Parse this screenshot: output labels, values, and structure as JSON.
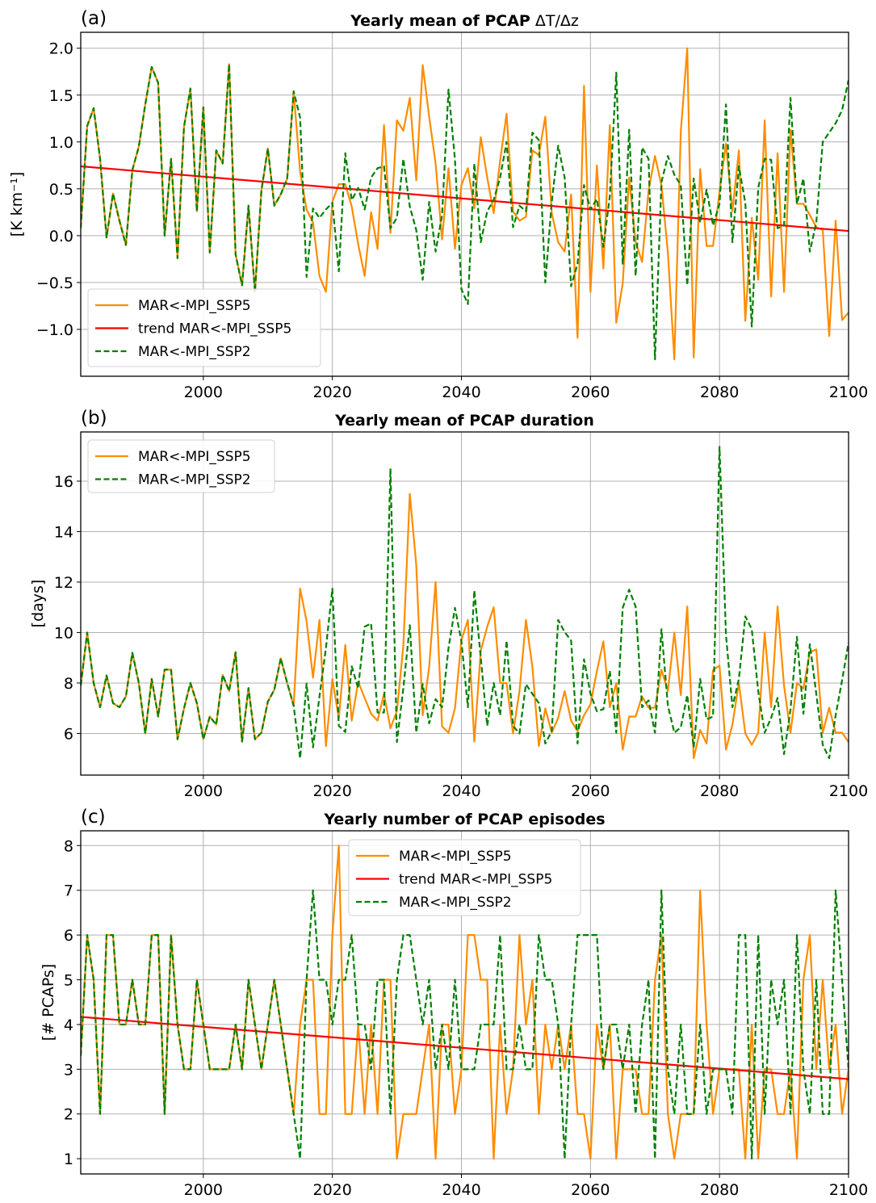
{
  "chart_data": [
    {
      "type": "line",
      "panel_label": "(a)",
      "title_bold": "Yearly mean of PCAP",
      "title_suffix": "ΔT/Δz",
      "xlabel": "",
      "ylabel": "[K km⁻¹]",
      "xlim": [
        1981,
        2100
      ],
      "ylim": [
        -1.5,
        2.17
      ],
      "xticks": [
        2000,
        2020,
        2040,
        2060,
        2080,
        2100
      ],
      "yticks": [
        -1.0,
        -0.5,
        0.0,
        0.5,
        1.0,
        1.5,
        2.0
      ],
      "ytick_labels": [
        "−1.0",
        "−0.5",
        "0.0",
        "0.5",
        "1.0",
        "1.5",
        "2.0"
      ],
      "grid": true,
      "legend_position": "lower-left",
      "x_start": 1981,
      "series": [
        {
          "name": "MAR<-MPI_SSP5",
          "color": "#ff8c00",
          "style": "solid",
          "values": [
            0.08,
            1.17,
            1.36,
            0.82,
            -0.02,
            0.45,
            0.16,
            -0.1,
            0.7,
            0.95,
            1.4,
            1.8,
            1.63,
            0.0,
            0.82,
            -0.24,
            1.16,
            1.57,
            0.26,
            1.37,
            -0.18,
            0.91,
            0.77,
            1.83,
            -0.2,
            -0.53,
            0.32,
            -0.6,
            0.48,
            0.93,
            0.32,
            0.44,
            0.61,
            1.54,
            0.68,
            0.28,
            0.14,
            -0.43,
            -0.6,
            0.36,
            0.55,
            0.55,
            0.31,
            -0.09,
            -0.43,
            0.25,
            -0.14,
            1.18,
            0.03,
            1.23,
            1.12,
            1.47,
            0.59,
            1.82,
            1.27,
            0.77,
            -0.04,
            0.72,
            -0.14,
            0.54,
            0.72,
            0.29,
            1.05,
            0.62,
            0.24,
            0.8,
            1.3,
            0.26,
            0.16,
            0.2,
            0.91,
            0.86,
            1.27,
            0.24,
            -0.07,
            -0.17,
            0.44,
            -1.09,
            1.6,
            -0.6,
            0.75,
            -0.35,
            1.18,
            -0.93,
            -0.51,
            0.62,
            -0.07,
            -0.28,
            0.48,
            0.85,
            0.54,
            -0.18,
            -1.32,
            1.11,
            2.0,
            -1.3,
            0.71,
            -0.11,
            -0.11,
            0.47,
            0.98,
            0.26,
            0.91,
            -0.91,
            0.19,
            -0.47,
            1.23,
            -0.65,
            0.88,
            -0.6,
            1.13,
            0.34,
            0.34,
            0.22,
            0.09,
            0.06,
            -1.07,
            0.16,
            -0.9,
            -0.82
          ]
        },
        {
          "name": "trend MAR<-MPI_SSP5",
          "color": "#ff0000",
          "style": "solid",
          "trend": {
            "start": [
              1981,
              0.74
            ],
            "end": [
              2100,
              0.05
            ]
          }
        },
        {
          "name": "MAR<-MPI_SSP2",
          "color": "#008000",
          "style": "dashed",
          "values": [
            0.08,
            1.17,
            1.36,
            0.82,
            -0.02,
            0.45,
            0.16,
            -0.1,
            0.7,
            0.95,
            1.4,
            1.8,
            1.63,
            0.0,
            0.82,
            -0.24,
            1.16,
            1.57,
            0.26,
            1.37,
            -0.18,
            0.91,
            0.77,
            1.83,
            -0.2,
            -0.53,
            0.32,
            -0.6,
            0.48,
            0.93,
            0.32,
            0.44,
            0.61,
            1.54,
            1.26,
            -0.44,
            0.29,
            0.19,
            0.28,
            0.35,
            -0.38,
            0.88,
            0.38,
            0.51,
            0.28,
            0.62,
            0.72,
            0.74,
            0.08,
            0.19,
            0.82,
            0.31,
            0.06,
            -0.47,
            0.36,
            -0.17,
            0.22,
            1.56,
            0.81,
            -0.57,
            -0.73,
            0.77,
            -0.07,
            0.26,
            0.38,
            0.62,
            1.0,
            0.09,
            0.32,
            0.26,
            1.1,
            1.02,
            -0.5,
            0.36,
            0.96,
            0.62,
            -0.54,
            -0.3,
            0.54,
            0.28,
            0.39,
            -0.12,
            0.42,
            1.74,
            -0.3,
            1.13,
            -0.43,
            0.94,
            0.82,
            -1.32,
            0.57,
            0.85,
            0.65,
            0.54,
            -0.53,
            0.61,
            0.14,
            0.49,
            0.11,
            0.34,
            1.4,
            -0.07,
            0.74,
            0.35,
            -0.97,
            0.51,
            0.82,
            0.81,
            0.08,
            0.11,
            1.47,
            0.34,
            0.61,
            -0.17,
            0.14,
            1.0,
            1.1,
            1.2,
            1.34,
            1.66
          ]
        }
      ]
    },
    {
      "type": "line",
      "panel_label": "(b)",
      "title_bold": "Yearly mean of PCAP duration",
      "title_suffix": "",
      "xlabel": "",
      "ylabel": "[days]",
      "xlim": [
        1981,
        2100
      ],
      "ylim": [
        4.35,
        17.95
      ],
      "xticks": [
        2000,
        2020,
        2040,
        2060,
        2080,
        2100
      ],
      "yticks": [
        6,
        8,
        10,
        12,
        14,
        16
      ],
      "ytick_labels": [
        "6",
        "8",
        "10",
        "12",
        "14",
        "16"
      ],
      "grid": true,
      "legend_position": "upper-left",
      "x_start": 1981,
      "series": [
        {
          "name": "MAR<-MPI_SSP5",
          "color": "#ff8c00",
          "style": "solid",
          "values": [
            7.9,
            10.0,
            8.0,
            7.04,
            8.3,
            7.2,
            7.04,
            7.47,
            9.2,
            8.0,
            6.0,
            8.16,
            6.67,
            8.53,
            8.53,
            5.77,
            6.99,
            8.0,
            7.2,
            5.77,
            6.67,
            6.35,
            8.32,
            7.68,
            9.22,
            5.68,
            7.8,
            5.77,
            6.03,
            7.26,
            7.73,
            8.98,
            8.0,
            7.1,
            11.74,
            10.45,
            8.21,
            10.5,
            5.5,
            8.16,
            6.6,
            9.51,
            6.51,
            8.05,
            7.41,
            6.78,
            6.51,
            7.57,
            6.21,
            6.88,
            9.49,
            15.5,
            12.68,
            6.72,
            8.64,
            12.0,
            6.28,
            6.03,
            7.0,
            9.7,
            10.5,
            5.68,
            9.28,
            10.23,
            11.0,
            8.0,
            8.0,
            6.0,
            7.68,
            10.5,
            8.64,
            5.5,
            6.99,
            6.03,
            6.62,
            7.68,
            6.51,
            6.09,
            6.72,
            7.15,
            8.48,
            9.65,
            7.04,
            8.0,
            5.36,
            6.67,
            6.67,
            7.47,
            7.02,
            7.02,
            8.53,
            7.68,
            10.0,
            7.52,
            11.03,
            5.02,
            6.14,
            5.6,
            8.51,
            8.69,
            5.36,
            6.35,
            8.0,
            6.0,
            5.55,
            6.03,
            10.0,
            7.04,
            11.03,
            7.9,
            6.03,
            8.0,
            7.79,
            9.22,
            9.33,
            6.03,
            7.02,
            6.03,
            6.03,
            5.66
          ]
        },
        {
          "name": "MAR<-MPI_SSP2",
          "color": "#008000",
          "style": "dashed",
          "values": [
            7.9,
            10.0,
            8.0,
            7.04,
            8.3,
            7.2,
            7.04,
            7.47,
            9.2,
            8.0,
            6.0,
            8.16,
            6.67,
            8.53,
            8.53,
            5.77,
            6.99,
            8.0,
            7.2,
            5.77,
            6.67,
            6.35,
            8.32,
            7.68,
            9.22,
            5.68,
            7.8,
            5.77,
            6.03,
            7.26,
            7.73,
            8.98,
            8.0,
            7.1,
            5.02,
            7.98,
            5.45,
            7.47,
            9.38,
            11.74,
            6.3,
            6.06,
            8.66,
            7.79,
            10.23,
            10.36,
            6.83,
            6.83,
            16.5,
            5.66,
            7.79,
            10.29,
            6.03,
            7.95,
            6.4,
            7.36,
            7.04,
            9.38,
            10.98,
            9.65,
            7.04,
            11.67,
            9.0,
            6.3,
            8.0,
            6.72,
            9.68,
            6.3,
            6.0,
            7.95,
            7.57,
            7.2,
            5.6,
            6.09,
            10.5,
            10.02,
            9.68,
            5.6,
            8.94,
            7.57,
            6.88,
            6.96,
            8.48,
            6.03,
            10.98,
            11.7,
            11.03,
            7.04,
            7.31,
            6.03,
            10.13,
            7.1,
            6.03,
            6.24,
            7.52,
            5.45,
            8.16,
            6.56,
            6.67,
            17.36,
            9.91,
            7.04,
            8.16,
            10.64,
            10.13,
            7.68,
            6.03,
            6.62,
            7.41,
            5.18,
            6.94,
            9.83,
            6.78,
            9.54,
            7.57,
            5.55,
            5.02,
            6.72,
            8.11,
            9.6
          ]
        }
      ]
    },
    {
      "type": "line",
      "panel_label": "(c)",
      "title_bold": "Yearly number of PCAP episodes",
      "title_suffix": "",
      "xlabel": "",
      "ylabel": "[# PCAPs]",
      "xlim": [
        1981,
        2100
      ],
      "ylim": [
        0.66,
        8.33
      ],
      "xticks": [
        2000,
        2020,
        2040,
        2060,
        2080,
        2100
      ],
      "yticks": [
        1,
        2,
        3,
        4,
        5,
        6,
        7,
        8
      ],
      "ytick_labels": [
        "1",
        "2",
        "3",
        "4",
        "5",
        "6",
        "7",
        "8"
      ],
      "grid": true,
      "legend_position": "upper-center",
      "x_start": 1981,
      "series": [
        {
          "name": "MAR<-MPI_SSP5",
          "color": "#ff8c00",
          "style": "solid",
          "values": [
            3.3,
            6,
            5,
            2,
            6,
            6,
            4,
            4,
            5,
            4,
            4,
            6,
            6,
            2,
            6,
            4,
            3,
            3,
            5,
            4,
            3,
            3,
            3,
            3,
            4,
            3,
            5,
            4,
            3,
            4,
            5,
            4,
            3,
            2,
            4,
            5,
            5,
            2,
            2,
            6,
            8,
            2,
            2,
            4,
            2,
            4,
            2,
            5,
            5,
            1,
            2,
            2,
            2,
            3,
            4,
            1,
            4,
            4,
            2,
            3,
            6,
            6,
            5,
            5,
            1,
            4,
            2,
            3,
            6,
            4,
            5,
            2,
            4,
            3,
            4,
            3,
            4,
            2,
            2,
            1,
            4,
            3,
            4,
            1,
            3,
            3,
            3,
            2,
            2,
            5,
            6,
            2,
            1,
            2,
            2,
            2,
            7,
            4,
            2,
            3,
            3,
            3,
            3,
            1,
            4,
            1,
            3,
            3,
            2,
            2,
            3,
            1,
            5,
            6,
            3,
            5,
            3,
            4,
            2,
            3
          ]
        },
        {
          "name": "trend MAR<-MPI_SSP5",
          "color": "#ff0000",
          "style": "solid",
          "trend": {
            "start": [
              1981,
              4.17
            ],
            "end": [
              2100,
              2.78
            ]
          }
        },
        {
          "name": "MAR<-MPI_SSP2",
          "color": "#008000",
          "style": "dashed",
          "values": [
            3.3,
            6,
            5,
            2,
            6,
            6,
            4,
            4,
            5,
            4,
            4,
            6,
            6,
            2,
            6,
            4,
            3,
            3,
            5,
            4,
            3,
            3,
            3,
            3,
            4,
            3,
            5,
            4,
            3,
            4,
            5,
            4,
            3,
            2,
            1,
            5,
            7,
            5,
            5,
            4,
            5,
            5,
            6,
            4,
            4,
            3,
            5,
            5,
            2,
            5,
            6,
            6,
            5,
            4,
            5,
            3,
            4,
            3,
            5,
            3,
            3,
            3,
            4,
            4,
            4,
            6,
            3,
            3,
            4,
            3,
            3,
            6,
            5,
            5,
            4,
            1,
            4,
            6,
            6,
            6,
            6,
            3,
            4,
            4,
            3,
            4,
            2,
            4,
            5,
            1,
            7,
            3,
            2,
            4,
            2,
            2,
            4,
            2,
            3,
            3,
            3,
            2,
            6,
            6,
            1,
            6,
            2,
            5,
            4,
            5,
            2,
            6,
            3,
            2,
            5,
            2,
            2,
            7,
            5,
            3
          ]
        }
      ]
    }
  ]
}
